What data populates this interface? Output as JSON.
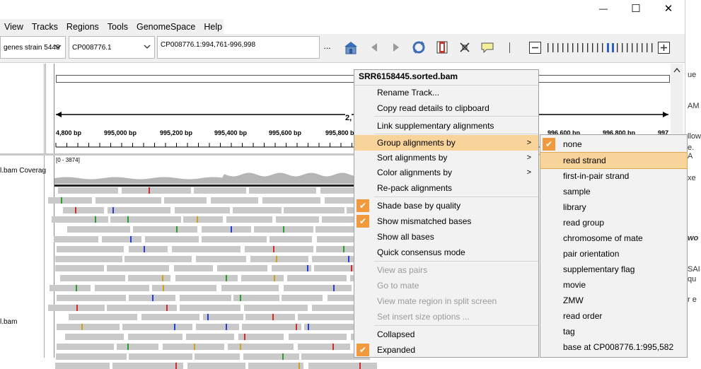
{
  "window": {
    "minimize_glyph": "—",
    "maximize_glyph": "☐",
    "close_glyph": "✕"
  },
  "menubar": {
    "items": [
      "View",
      "Tracks",
      "Regions",
      "Tools",
      "GenomeSpace",
      "Help"
    ]
  },
  "toolbar": {
    "genome_value": "genes strain 5448",
    "chromosome_value": "CP008776.1",
    "locus_value": "CP008776.1:994,761-996,998",
    "more_label": "...",
    "icons": [
      "home-icon",
      "back-icon",
      "forward-icon",
      "refresh-icon",
      "region-icon",
      "resize-icon",
      "popup-text-icon",
      "zoom-out-icon",
      "zoom-slider",
      "zoom-in-icon"
    ],
    "zoom_minus": "−",
    "zoom_plus": "+"
  },
  "right_strip": {
    "fragments": [
      "ue",
      "AM",
      "llow",
      "e. A",
      "xe",
      "wo",
      "SAI",
      "qu",
      "r e"
    ]
  },
  "ruler": {
    "span_label": "2,",
    "tick_labels": [
      "4,800 bp",
      "995,000 bp",
      "995,200 bp",
      "995,400 bp",
      "995,600 bp",
      "995,800 b",
      "996,600 bp",
      "996,800 bp",
      "997"
    ]
  },
  "tracks": {
    "coverage_name": "l.bam Coverag",
    "coverage_range": "[0 - 3874]",
    "alignment_name": "l.bam"
  },
  "context_menu": {
    "title": "SRR6158445.sorted.bam",
    "items": [
      {
        "label": "Rename Track...",
        "checked": false,
        "disabled": false,
        "submenu": false
      },
      {
        "label": "Copy read details to clipboard",
        "checked": false,
        "disabled": false,
        "submenu": false
      },
      {
        "label": "Link supplementary alignments",
        "checked": false,
        "disabled": false,
        "submenu": false
      },
      {
        "label": "Group alignments by",
        "checked": false,
        "disabled": false,
        "submenu": true,
        "highlighted": true
      },
      {
        "label": "Sort alignments by",
        "checked": false,
        "disabled": false,
        "submenu": true
      },
      {
        "label": "Color alignments by",
        "checked": false,
        "disabled": false,
        "submenu": true
      },
      {
        "label": "Re-pack alignments",
        "checked": false,
        "disabled": false,
        "submenu": false
      },
      {
        "label": "Shade base by quality",
        "checked": true,
        "disabled": false,
        "submenu": false
      },
      {
        "label": "Show mismatched bases",
        "checked": true,
        "disabled": false,
        "submenu": false
      },
      {
        "label": "Show all bases",
        "checked": false,
        "disabled": false,
        "submenu": false
      },
      {
        "label": "Quick consensus mode",
        "checked": false,
        "disabled": false,
        "submenu": false
      },
      {
        "label": "View as pairs",
        "checked": false,
        "disabled": true,
        "submenu": false
      },
      {
        "label": "Go to mate",
        "checked": false,
        "disabled": true,
        "submenu": false
      },
      {
        "label": "View mate region in split screen",
        "checked": false,
        "disabled": true,
        "submenu": false
      },
      {
        "label": "Set insert size options ...",
        "checked": false,
        "disabled": true,
        "submenu": false
      },
      {
        "label": "Collapsed",
        "checked": false,
        "disabled": false,
        "submenu": false
      },
      {
        "label": "Expanded",
        "checked": true,
        "disabled": false,
        "submenu": false
      }
    ],
    "check_glyph": "✔",
    "arrow_glyph": ">"
  },
  "group_submenu": {
    "items": [
      {
        "label": "none",
        "checked": true
      },
      {
        "label": "read strand",
        "highlighted": true
      },
      {
        "label": "first-in-pair strand"
      },
      {
        "label": "sample"
      },
      {
        "label": "library"
      },
      {
        "label": "read group"
      },
      {
        "label": "chromosome of mate"
      },
      {
        "label": "pair orientation"
      },
      {
        "label": "supplementary flag"
      },
      {
        "label": "movie"
      },
      {
        "label": "ZMW"
      },
      {
        "label": "read order"
      },
      {
        "label": "tag"
      },
      {
        "label": "base at CP008776.1:995,582"
      }
    ]
  },
  "colors": {
    "highlight": "#f8d39a",
    "check_bg": "#f19a3d",
    "read_gray": "#c9c9c9",
    "mismatch_colors": [
      "#2a9d2a",
      "#1f3fd6",
      "#d62a2a",
      "#d0a020"
    ]
  }
}
